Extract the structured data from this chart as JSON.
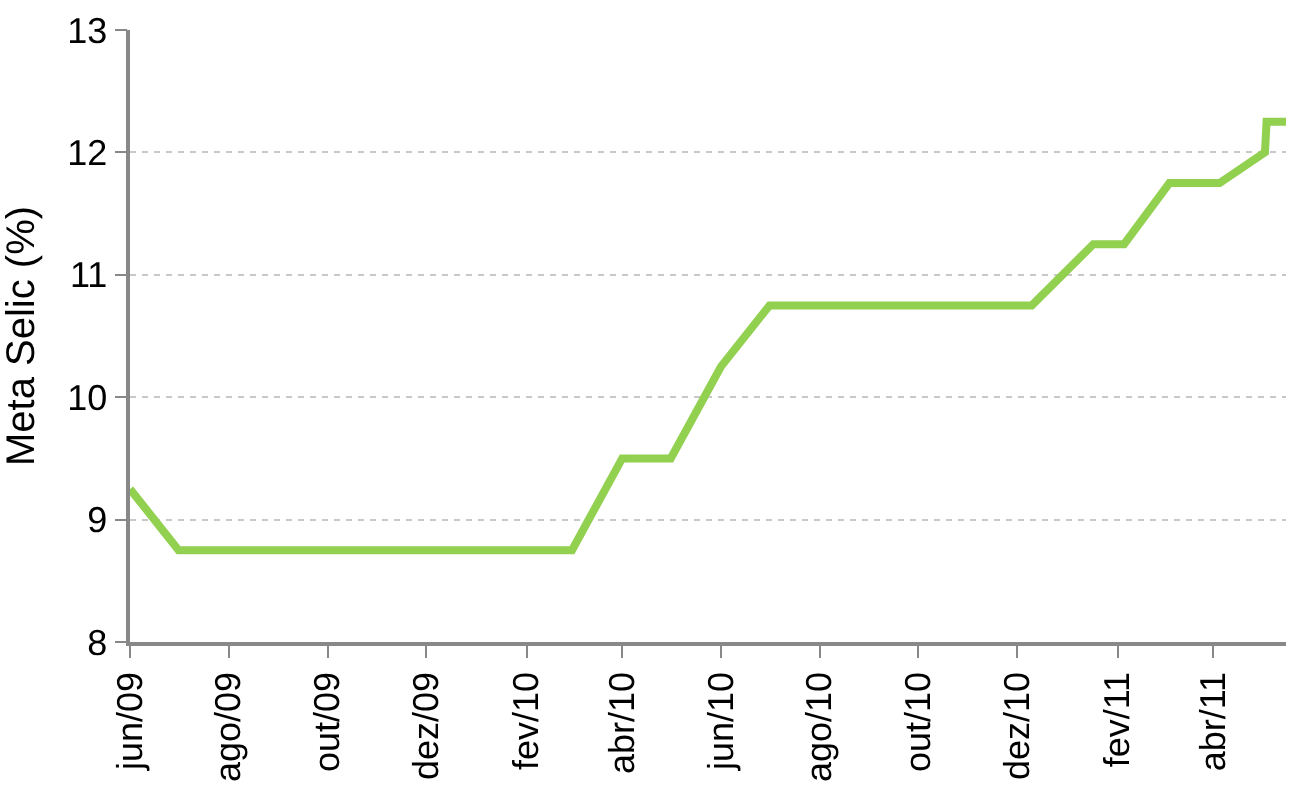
{
  "chart_data": {
    "type": "line",
    "ylabel": "Meta Selic (%)",
    "x": [
      "2009-06-01",
      "2009-07-01",
      "2010-03-01",
      "2010-04-01",
      "2010-05-01",
      "2010-06-01",
      "2010-07-01",
      "2010-12-10",
      "2011-01-17",
      "2011-02-05",
      "2011-03-05",
      "2011-04-05",
      "2011-05-03",
      "2011-05-04",
      "2011-05-16"
    ],
    "series": [
      {
        "color": "#92d050",
        "values": [
          9.25,
          8.75,
          8.75,
          9.5,
          9.5,
          10.25,
          10.75,
          10.75,
          11.25,
          11.25,
          11.75,
          11.75,
          12.0,
          12.25,
          12.25
        ]
      }
    ],
    "xlim": [
      "2009-06-01",
      "2011-05-16"
    ],
    "xticks": [
      {
        "value": "2009-06-01",
        "label": "jun/09"
      },
      {
        "value": "2009-08-01",
        "label": "ago/09"
      },
      {
        "value": "2009-10-01",
        "label": "out/09"
      },
      {
        "value": "2009-12-01",
        "label": "dez/09"
      },
      {
        "value": "2010-02-01",
        "label": "fev/10"
      },
      {
        "value": "2010-04-01",
        "label": "abr/10"
      },
      {
        "value": "2010-06-01",
        "label": "jun/10"
      },
      {
        "value": "2010-08-01",
        "label": "ago/10"
      },
      {
        "value": "2010-10-01",
        "label": "out/10"
      },
      {
        "value": "2010-12-01",
        "label": "dez/10"
      },
      {
        "value": "2011-02-01",
        "label": "fev/11"
      },
      {
        "value": "2011-04-01",
        "label": "abr/11"
      }
    ],
    "ylim": [
      8,
      13
    ],
    "yticks": [
      8,
      9,
      10,
      11,
      12,
      13
    ],
    "grid": "y",
    "line_style": "solid",
    "marker": "none",
    "legend": false
  }
}
